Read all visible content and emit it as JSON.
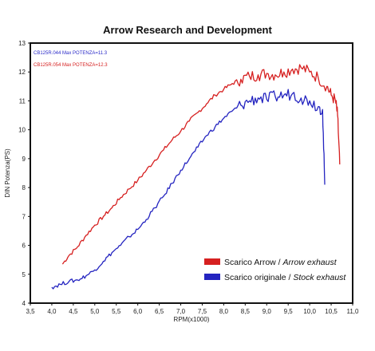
{
  "chart_data": {
    "type": "line",
    "title": "Arrow Research and Development",
    "xlabel": "RPM(x1000)",
    "ylabel": "DIN Potenza(PS)",
    "xlim": [
      3.5,
      11.0
    ],
    "ylim": [
      4,
      13
    ],
    "xticks": [
      "3,5",
      "4,0",
      "4,5",
      "5,0",
      "5,5",
      "6,0",
      "6,5",
      "7,0",
      "7,5",
      "8,0",
      "8,5",
      "9,0",
      "9,5",
      "10,0",
      "10,5",
      "11,0"
    ],
    "yticks": [
      "4",
      "5",
      "6",
      "7",
      "8",
      "9",
      "10",
      "11",
      "12",
      "13"
    ],
    "grid": false,
    "legend_position": "bottom-right",
    "notes": [
      {
        "text": "CB125R.044  Max POTENZA=11.3",
        "color": "#2a2ac8"
      },
      {
        "text": "CB125R.054  Max POTENZA=12.3",
        "color": "#d62020"
      }
    ],
    "series": [
      {
        "name": "Scarico Arrow / Arrow exhaust",
        "legend_plain": "Scarico Arrow / ",
        "legend_italic": "Arrow exhaust",
        "color": "#d62020",
        "x": [
          4.25,
          4.4,
          4.6,
          4.8,
          5.0,
          5.2,
          5.4,
          5.6,
          5.8,
          6.0,
          6.2,
          6.4,
          6.6,
          6.8,
          7.0,
          7.2,
          7.4,
          7.6,
          7.8,
          8.0,
          8.2,
          8.4,
          8.6,
          8.8,
          9.0,
          9.2,
          9.4,
          9.6,
          9.8,
          10.0,
          10.2,
          10.4,
          10.5,
          10.6,
          10.65,
          10.7
        ],
        "y": [
          5.35,
          5.65,
          5.95,
          6.35,
          6.7,
          7.0,
          7.3,
          7.65,
          7.95,
          8.25,
          8.6,
          8.95,
          9.3,
          9.65,
          9.95,
          10.3,
          10.6,
          10.9,
          11.2,
          11.4,
          11.6,
          11.75,
          11.85,
          11.9,
          11.95,
          11.9,
          12.0,
          12.1,
          12.15,
          12.0,
          11.8,
          11.5,
          11.2,
          11.0,
          10.5,
          8.8
        ]
      },
      {
        "name": "Scarico originale / Stock exhaust",
        "legend_plain": "Scarico originale / ",
        "legend_italic": "Stock exhaust",
        "color": "#2424c0",
        "x": [
          4.0,
          4.2,
          4.4,
          4.6,
          4.8,
          5.0,
          5.2,
          5.4,
          5.6,
          5.8,
          6.0,
          6.2,
          6.4,
          6.6,
          6.8,
          7.0,
          7.2,
          7.4,
          7.6,
          7.8,
          8.0,
          8.2,
          8.4,
          8.6,
          8.8,
          9.0,
          9.2,
          9.4,
          9.6,
          9.8,
          10.0,
          10.2,
          10.3,
          10.35
        ],
        "y": [
          4.55,
          4.65,
          4.75,
          4.8,
          4.95,
          5.15,
          5.45,
          5.75,
          6.0,
          6.3,
          6.55,
          6.9,
          7.3,
          7.7,
          8.15,
          8.6,
          9.0,
          9.4,
          9.8,
          10.1,
          10.4,
          10.65,
          10.85,
          11.0,
          11.1,
          11.05,
          11.15,
          11.2,
          11.25,
          11.1,
          11.0,
          10.8,
          10.7,
          8.1
        ]
      }
    ]
  }
}
